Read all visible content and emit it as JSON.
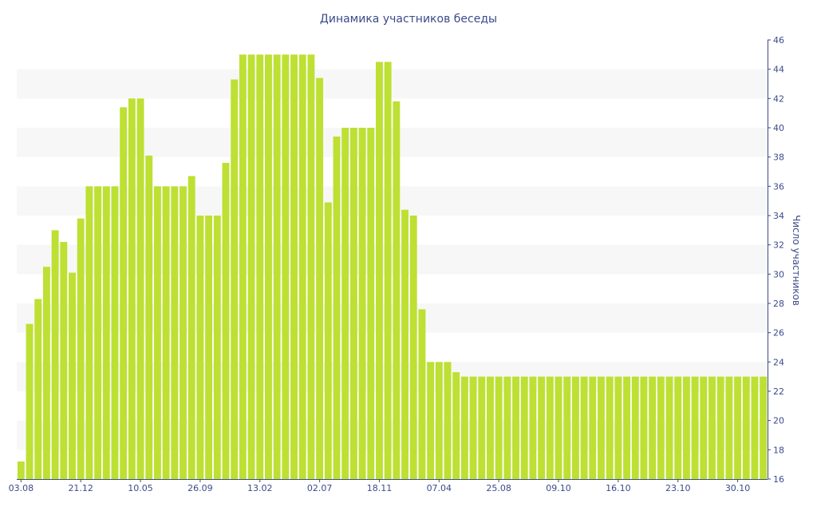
{
  "chart_data": {
    "type": "bar",
    "title": "Динамика участников беседы",
    "xlabel": "",
    "ylabel": "Число участников",
    "y_axis_side": "right",
    "ylim": [
      16,
      46
    ],
    "y_ticks": [
      16,
      18,
      20,
      22,
      24,
      26,
      28,
      30,
      32,
      34,
      36,
      38,
      40,
      42,
      44,
      46
    ],
    "grid": "alternating horizontal bands",
    "x_tick_labels": [
      "03.08",
      "21.12",
      "10.05",
      "26.09",
      "13.02",
      "02.07",
      "18.11",
      "07.04",
      "25.08",
      "09.10",
      "16.10",
      "23.10",
      "30.10"
    ],
    "x_tick_positions": [
      0,
      7,
      14,
      21,
      28,
      35,
      42,
      49,
      56,
      63,
      70,
      77,
      84
    ],
    "bar_color": "#bde033",
    "band_color": "#f7f7f7",
    "values": [
      17.2,
      26.6,
      28.3,
      30.5,
      33.0,
      32.2,
      30.1,
      33.8,
      36.0,
      36.0,
      36.0,
      36.0,
      41.4,
      42.0,
      42.0,
      38.1,
      36.0,
      36.0,
      36.0,
      36.0,
      36.7,
      34.0,
      34.0,
      34.0,
      37.6,
      43.3,
      45.0,
      45.0,
      45.0,
      45.0,
      45.0,
      45.0,
      45.0,
      45.0,
      45.0,
      43.4,
      34.9,
      39.4,
      40.0,
      40.0,
      40.0,
      40.0,
      44.5,
      44.5,
      41.8,
      34.4,
      34.0,
      27.6,
      24.0,
      24.0,
      24.0,
      23.3,
      23.0,
      23.0,
      23.0,
      23.0,
      23.0,
      23.0,
      23.0,
      23.0,
      23.0,
      23.0,
      23.0,
      23.0,
      23.0,
      23.0,
      23.0,
      23.0,
      23.0,
      23.0,
      23.0,
      23.0,
      23.0,
      23.0,
      23.0,
      23.0,
      23.0,
      23.0,
      23.0,
      23.0,
      23.0,
      23.0,
      23.0,
      23.0,
      23.0,
      23.0,
      23.0,
      23.0
    ]
  }
}
